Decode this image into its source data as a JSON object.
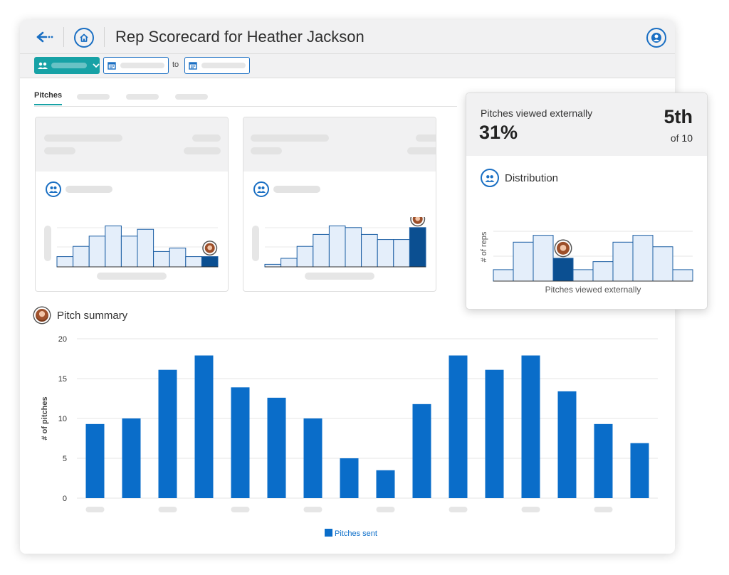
{
  "header": {
    "title": "Rep Scorecard for Heather Jackson"
  },
  "toolbar": {
    "to_label": "to"
  },
  "tabs": {
    "active_label": "Pitches"
  },
  "pitch_summary": {
    "title": "Pitch summary"
  },
  "overlay": {
    "metric_label": "Pitches viewed externally",
    "metric_value": "31%",
    "rank": "5th",
    "rank_of": "of 10",
    "distribution_label": "Distribution",
    "y_label": "# of reps",
    "x_label": "Pitches viewed externally"
  },
  "colors": {
    "accent": "#0a6dc9",
    "highlight": "#0b4f91",
    "teal": "#17a2a6",
    "light_bar": "#e4eefa"
  },
  "chart_data": [
    {
      "type": "bar",
      "title": "Pitch summary",
      "ylabel": "# of pitches",
      "xlabel": "",
      "ylim": [
        0,
        20
      ],
      "yticks": [
        0,
        5,
        10,
        15,
        20
      ],
      "series": [
        {
          "name": "Pitches sent",
          "values": [
            9.3,
            10,
            16.1,
            17.9,
            13.9,
            12.6,
            10,
            5,
            3.5,
            11.8,
            17.9,
            16.1,
            17.9,
            13.4,
            9.3,
            6.9
          ]
        }
      ],
      "legend": "bottom-center"
    },
    {
      "type": "bar",
      "title": "Distribution",
      "ylabel": "# of reps",
      "xlabel": "Pitches viewed externally",
      "values": [
        1,
        3.4,
        4,
        2,
        1,
        1.7,
        3.4,
        4,
        3,
        1
      ],
      "highlight_index": 3
    },
    {
      "type": "bar",
      "values": [
        1.2,
        2.4,
        3.6,
        4.8,
        3.6,
        4.4,
        1.8,
        2.2,
        1.2,
        1.2
      ],
      "highlight_index": 9
    },
    {
      "type": "bar",
      "values": [
        0.3,
        1,
        2.4,
        3.8,
        4.8,
        4.6,
        3.8,
        3.2,
        3.2,
        4.6
      ],
      "highlight_index": 9
    }
  ]
}
